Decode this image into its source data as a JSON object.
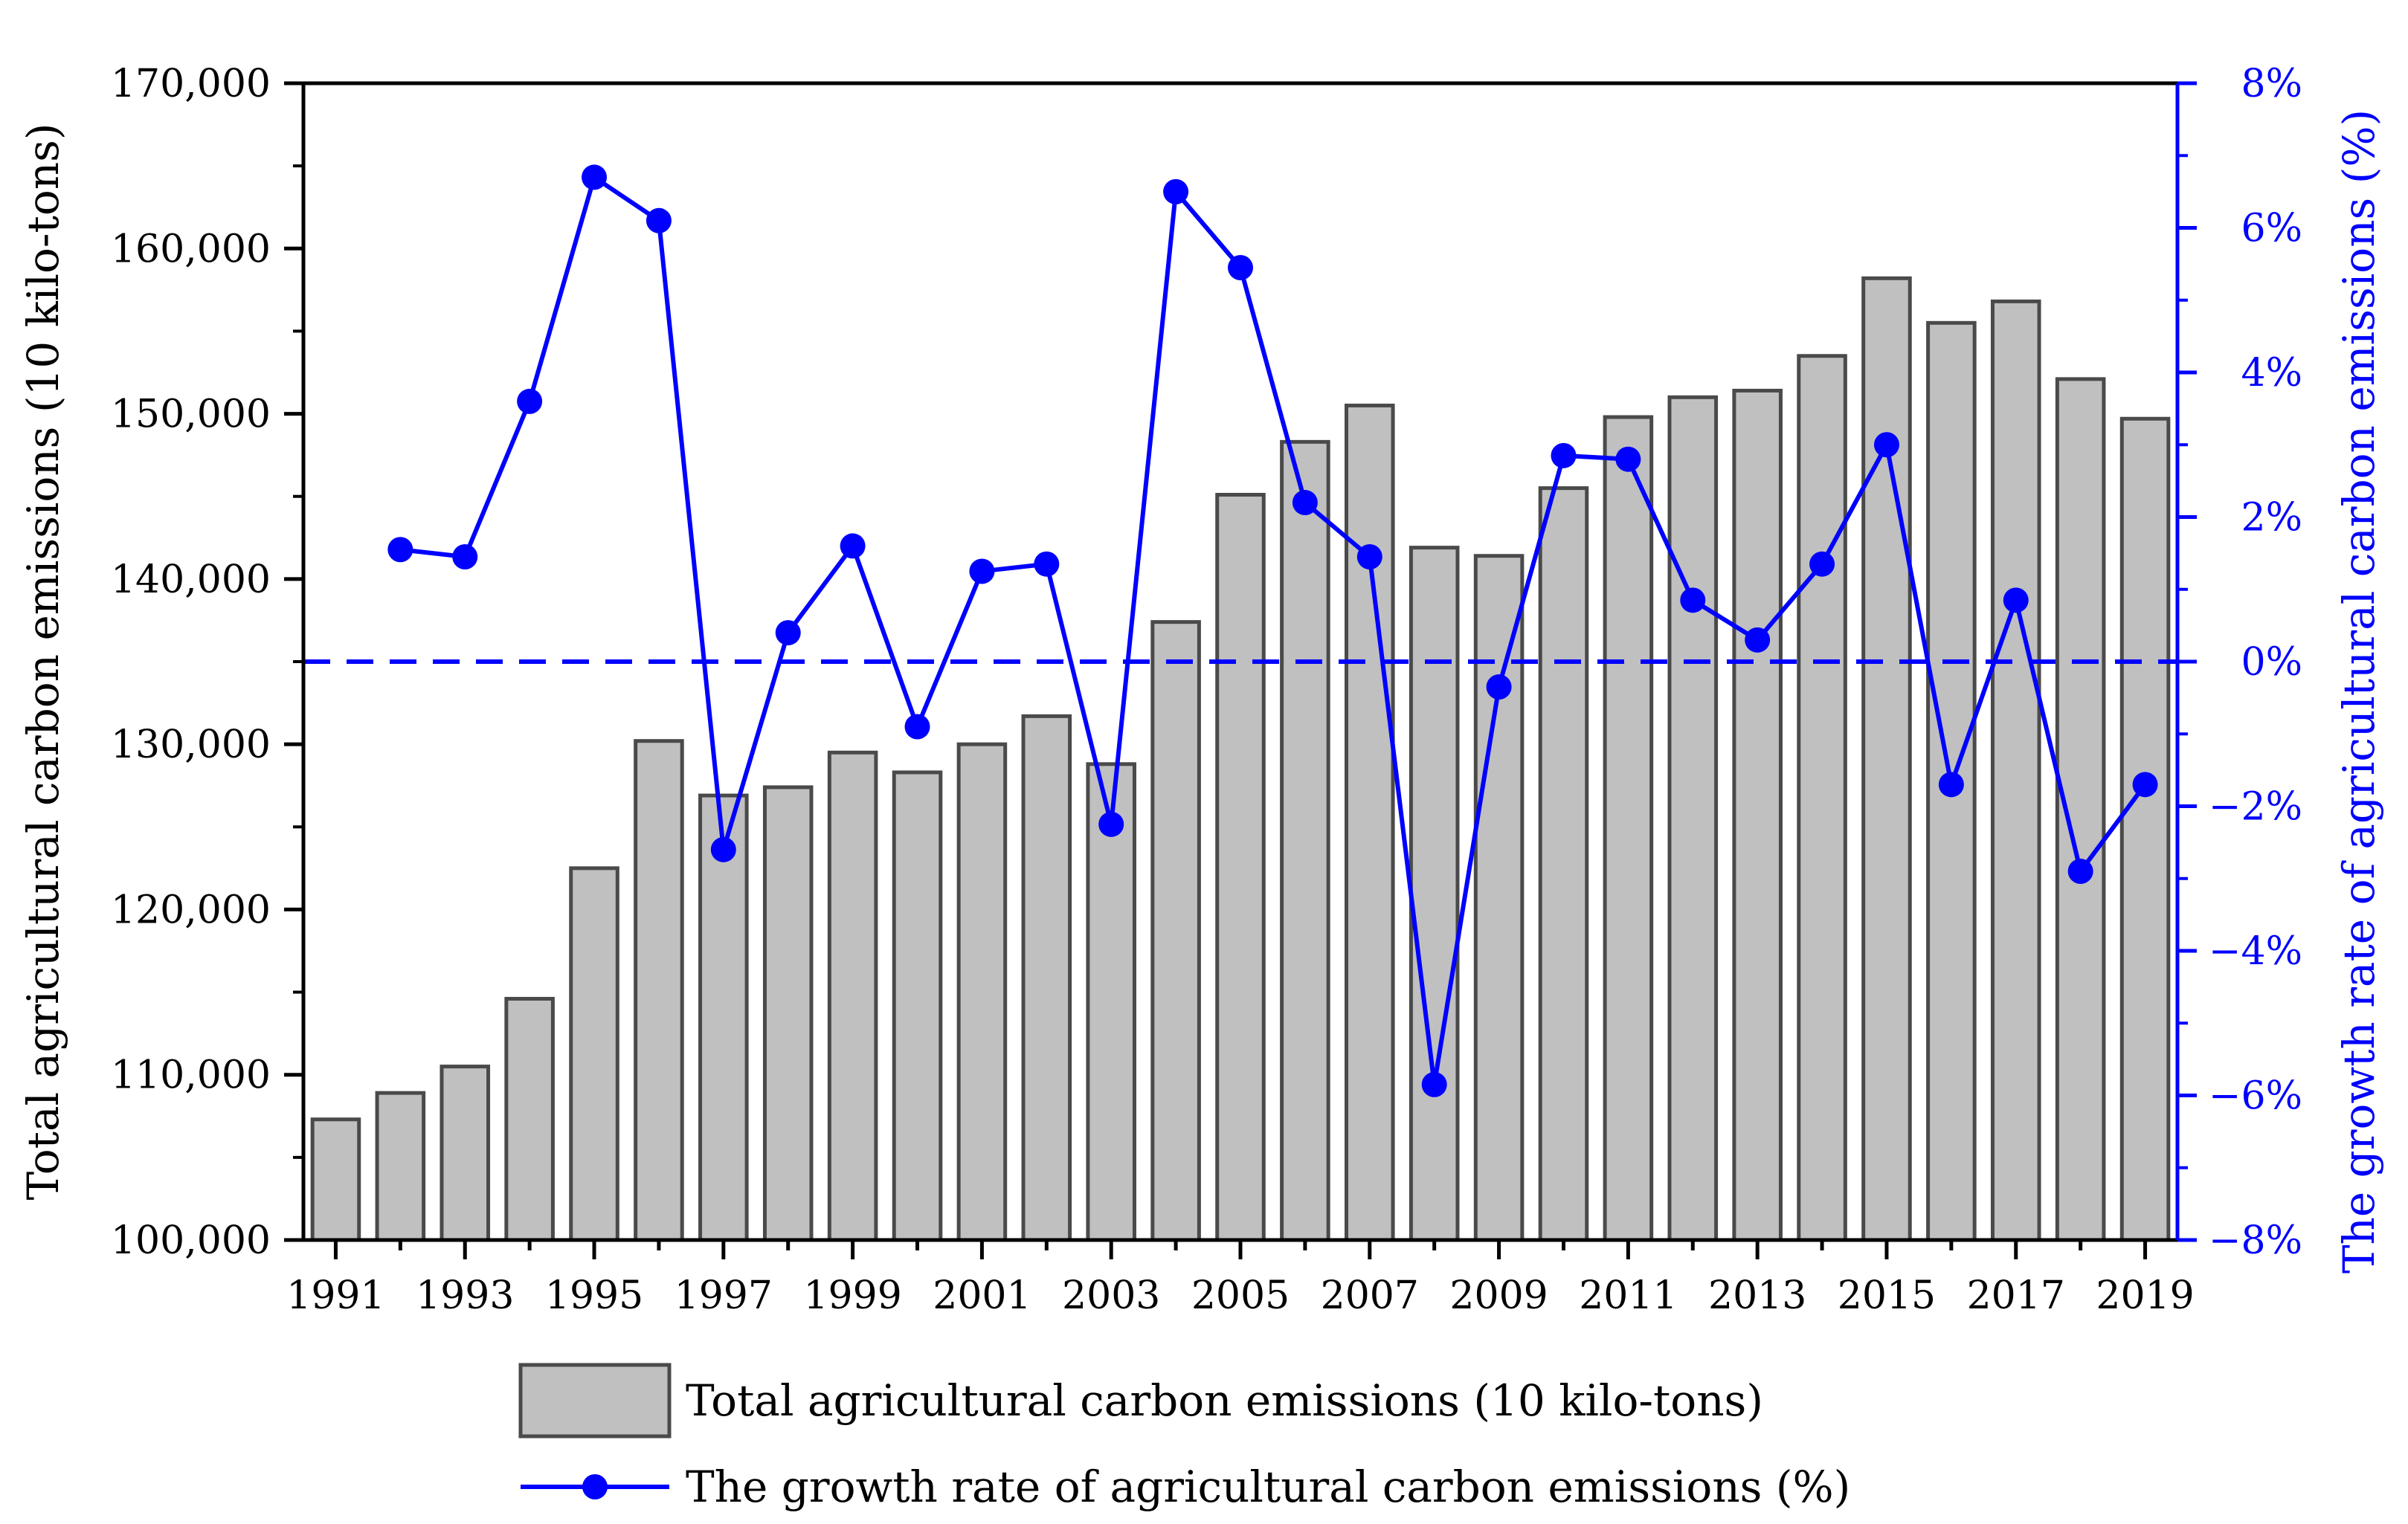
{
  "chart_data": {
    "type": "bar+line",
    "title": "",
    "xlabel": "",
    "categories": [
      "1991",
      "1992",
      "1993",
      "1994",
      "1995",
      "1996",
      "1997",
      "1998",
      "1999",
      "2000",
      "2001",
      "2002",
      "2003",
      "2004",
      "2005",
      "2006",
      "2007",
      "2008",
      "2009",
      "2010",
      "2011",
      "2012",
      "2013",
      "2014",
      "2015",
      "2016",
      "2017",
      "2018",
      "2019"
    ],
    "x_tick_labels": [
      "1991",
      "1993",
      "1995",
      "1997",
      "1999",
      "2001",
      "2003",
      "2005",
      "2007",
      "2009",
      "2011",
      "2013",
      "2015",
      "2017",
      "2019"
    ],
    "series": [
      {
        "name": "Total agricultural carbon emissions (10 kilo-tons)",
        "type": "bar",
        "axis": "left",
        "color": "#c0c0c0",
        "edge_color": "#4a4a4a",
        "values": [
          107300,
          108900,
          110500,
          114600,
          122500,
          130200,
          126900,
          127400,
          129500,
          128300,
          130000,
          131700,
          128800,
          137400,
          145100,
          148300,
          150500,
          141900,
          141400,
          145500,
          149800,
          151000,
          151400,
          153500,
          158200,
          155500,
          156800,
          152100,
          149700
        ]
      },
      {
        "name": "The growth rate of agricultural carbon emissions (%)",
        "type": "line",
        "axis": "right",
        "color": "#0000ff",
        "values": [
          null,
          1.55,
          1.45,
          3.6,
          6.7,
          6.1,
          -2.6,
          0.4,
          1.6,
          -0.9,
          1.25,
          1.35,
          -2.25,
          6.5,
          5.45,
          2.2,
          1.45,
          -5.85,
          -0.35,
          2.85,
          2.8,
          0.85,
          0.3,
          1.35,
          3.0,
          -1.7,
          0.85,
          -2.9,
          -1.7
        ]
      }
    ],
    "y_left": {
      "label": "Total agricultural carbon emissions (10 kilo-tons)",
      "ylim": [
        100000,
        170000
      ],
      "ticks": [
        100000,
        110000,
        120000,
        130000,
        140000,
        150000,
        160000,
        170000
      ],
      "tick_labels": [
        "100,000",
        "110,000",
        "120,000",
        "130,000",
        "140,000",
        "150,000",
        "160,000",
        "170,000"
      ]
    },
    "y_right": {
      "label": "The growth rate of agricultural carbon emissions (%)",
      "ylim": [
        -8,
        8
      ],
      "ticks": [
        -8,
        -6,
        -4,
        -2,
        0,
        2,
        4,
        6,
        8
      ],
      "tick_labels": [
        "−8%",
        "−6%",
        "−4%",
        "−2%",
        "0%",
        "2%",
        "4%",
        "6%",
        "8%"
      ],
      "color": "#0000ff"
    },
    "reference_line": {
      "value": 0,
      "axis": "right",
      "style": "dashed",
      "color": "#0000ff"
    },
    "legend": {
      "position": "bottom-center",
      "entries": [
        "Total agricultural carbon emissions (10 kilo-tons)",
        "The growth rate of agricultural carbon emissions (%)"
      ]
    },
    "grid": false
  }
}
